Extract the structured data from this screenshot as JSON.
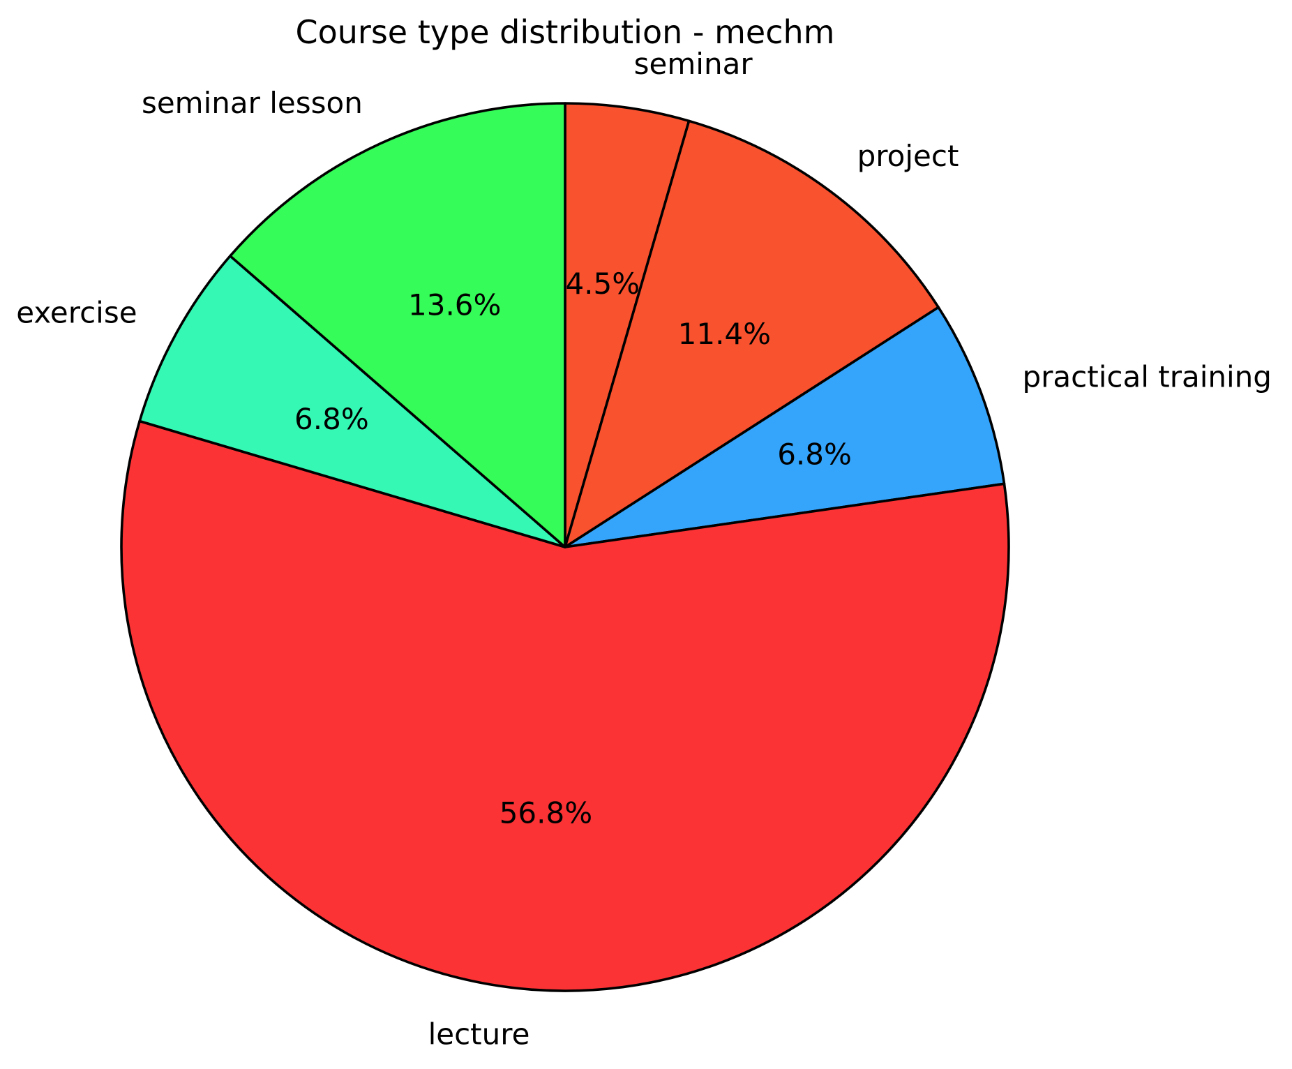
{
  "chart_data": {
    "type": "pie",
    "title": "Course type distribution - mechm",
    "slices": [
      {
        "label": "seminar",
        "value": 4.5,
        "pct_label": "4.5%",
        "color": "#F9522F"
      },
      {
        "label": "project",
        "value": 11.4,
        "pct_label": "11.4%",
        "color": "#F9522F"
      },
      {
        "label": "practical training",
        "value": 6.8,
        "pct_label": "6.8%",
        "color": "#35A5FB"
      },
      {
        "label": "lecture",
        "value": 56.8,
        "pct_label": "56.8%",
        "color": "#FB3335"
      },
      {
        "label": "exercise",
        "value": 6.8,
        "pct_label": "6.8%",
        "color": "#35F8B5"
      },
      {
        "label": "seminar lesson",
        "value": 13.6,
        "pct_label": "13.6%",
        "color": "#35FC58"
      }
    ],
    "start_angle_deg": 90,
    "direction": "clockwise",
    "label_distance": 1.1,
    "pct_distance": 0.6,
    "edge_color": "#000000",
    "edge_width": 3.6,
    "text_color": "#000000",
    "background": "#FFFFFF",
    "legend": "none"
  }
}
